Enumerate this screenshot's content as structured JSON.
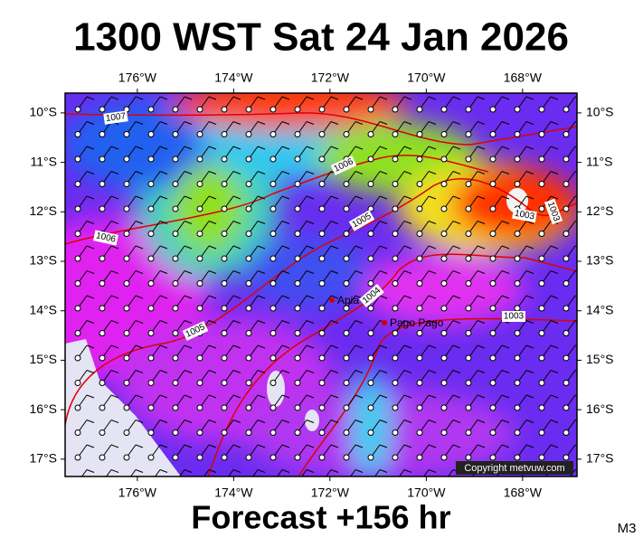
{
  "title": "1300 WST Sat 24 Jan 2026",
  "footer": "Forecast +156 hr",
  "model": "M3",
  "copyright": "Copyright metvuw.com",
  "lon_ticks": [
    {
      "value": -176,
      "label": "176°W"
    },
    {
      "value": -174,
      "label": "174°W"
    },
    {
      "value": -172,
      "label": "172°W"
    },
    {
      "value": -170,
      "label": "170°W"
    },
    {
      "value": -168,
      "label": "168°W"
    }
  ],
  "lat_ticks": [
    {
      "value": -10,
      "label": "10°S"
    },
    {
      "value": -11,
      "label": "11°S"
    },
    {
      "value": -12,
      "label": "12°S"
    },
    {
      "value": -13,
      "label": "13°S"
    },
    {
      "value": -14,
      "label": "14°S"
    },
    {
      "value": -15,
      "label": "15°S"
    },
    {
      "value": -16,
      "label": "16°S"
    },
    {
      "value": -17,
      "label": "17°S"
    }
  ],
  "isobar_labels": [
    1007,
    1006,
    1006,
    1005,
    1005,
    1004,
    1003,
    1003,
    1003
  ],
  "places": [
    "Apia",
    "Pago Pago"
  ]
}
